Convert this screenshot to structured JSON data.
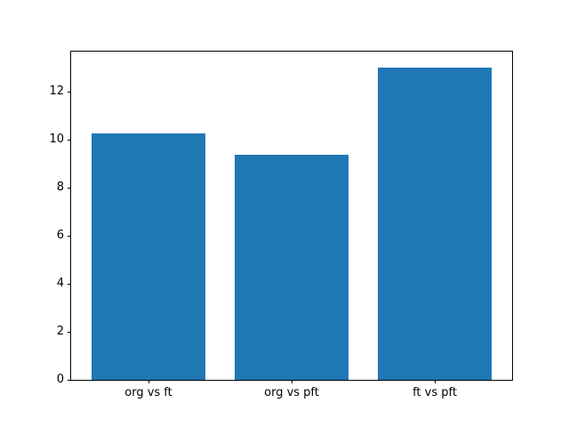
{
  "figure": {
    "background_color": "#ffffff",
    "spine_color": "#000000",
    "tick_color": "#000000",
    "tick_label_color": "#000000"
  },
  "chart_data": {
    "type": "bar",
    "categories": [
      "org vs ft",
      "org vs pft",
      "ft vs pft"
    ],
    "values": [
      10.25,
      9.35,
      13.0
    ],
    "title": "",
    "xlabel": "",
    "ylabel": "",
    "ylim": [
      0,
      13.65
    ],
    "yticks": [
      0,
      2,
      4,
      6,
      8,
      10,
      12
    ],
    "bar_color": "#1f77b4",
    "bar_width_fraction": 0.8,
    "grid": false,
    "legend_position": "none"
  }
}
